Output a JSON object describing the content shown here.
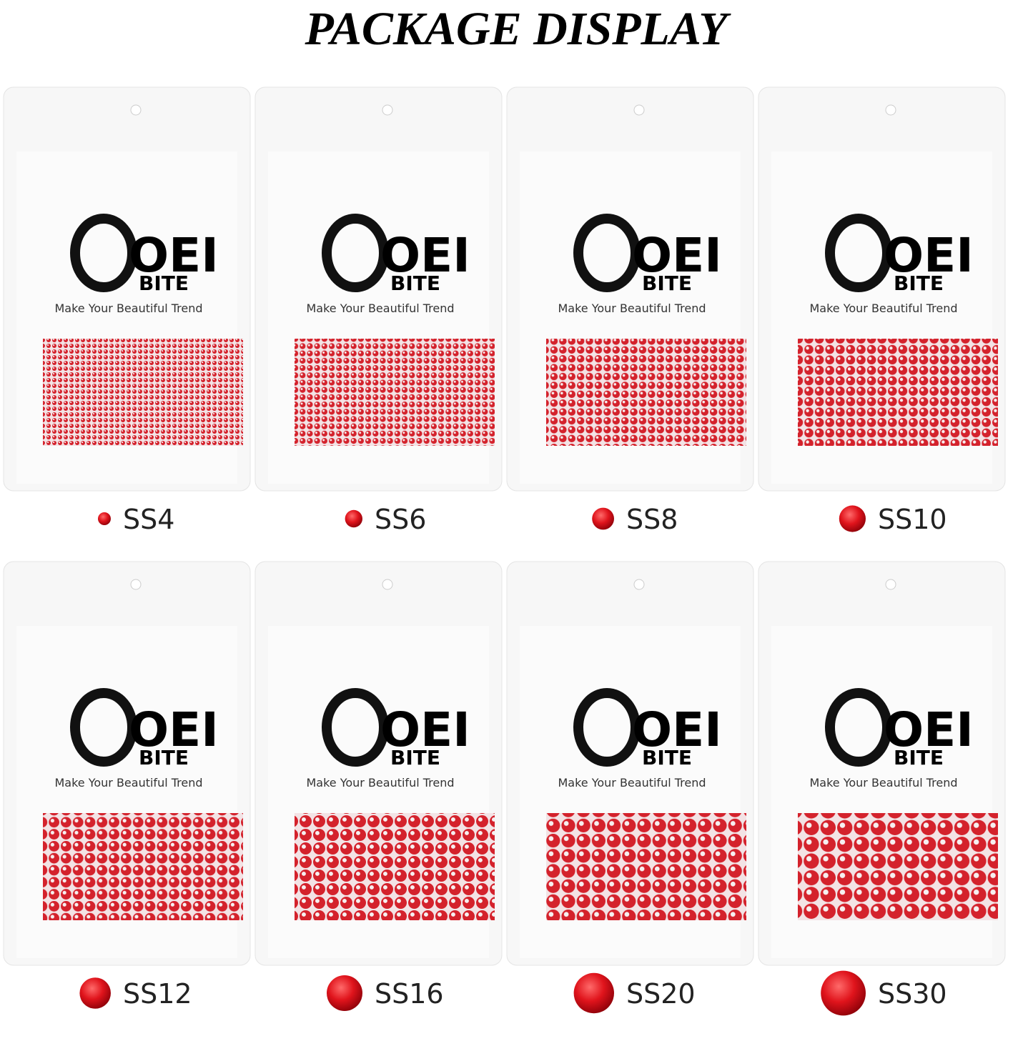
{
  "header": {
    "title": "PACKAGE DISPLAY"
  },
  "packages": [
    {
      "logo_top": "OEI",
      "logo_bottom": "BITE",
      "tagline": "Make Your Beautiful Trend",
      "size_label": "SS4"
    },
    {
      "logo_top": "OEI",
      "logo_bottom": "BITE",
      "tagline": "Make Your Beautiful Trend",
      "size_label": "SS6"
    },
    {
      "logo_top": "OEI",
      "logo_bottom": "BITE",
      "tagline": "Make Your Beautiful Trend",
      "size_label": "SS8"
    },
    {
      "logo_top": "OEI",
      "logo_bottom": "BITE",
      "tagline": "Make Your Beautiful Trend",
      "size_label": "SS10"
    },
    {
      "logo_top": "OEI",
      "logo_bottom": "BITE",
      "tagline": "Make Your Beautiful Trend",
      "size_label": "SS12"
    },
    {
      "logo_top": "OEI",
      "logo_bottom": "BITE",
      "tagline": "Make Your Beautiful Trend",
      "size_label": "SS16"
    },
    {
      "logo_top": "OEI",
      "logo_bottom": "BITE",
      "tagline": "Make Your Beautiful Trend",
      "size_label": "SS20"
    },
    {
      "logo_top": "OEI",
      "logo_bottom": "BITE",
      "tagline": "Make Your Beautiful Trend",
      "size_label": "SS30"
    }
  ]
}
